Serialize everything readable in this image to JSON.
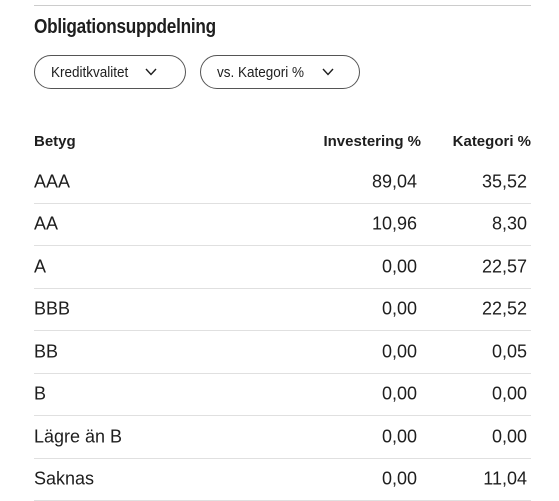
{
  "section": {
    "title": "Obligationsuppdelning"
  },
  "filters": {
    "primary_label": "Kreditkvalitet",
    "compare_label": "vs. Kategori %"
  },
  "table": {
    "headers": {
      "grade": "Betyg",
      "investment": "Investering  %",
      "category": "Kategori  %"
    },
    "rows": [
      {
        "grade": "AAA",
        "investment": "89,04",
        "category": "35,52"
      },
      {
        "grade": "AA",
        "investment": "10,96",
        "category": "8,30"
      },
      {
        "grade": "A",
        "investment": "0,00",
        "category": "22,57"
      },
      {
        "grade": "BBB",
        "investment": "0,00",
        "category": "22,52"
      },
      {
        "grade": "BB",
        "investment": "0,00",
        "category": "0,05"
      },
      {
        "grade": "B",
        "investment": "0,00",
        "category": "0,00"
      },
      {
        "grade": "Lägre än B",
        "investment": "0,00",
        "category": "0,00"
      },
      {
        "grade": "Saknas",
        "investment": "0,00",
        "category": "11,04"
      }
    ]
  },
  "icons": {
    "dropdown": "chevron-down-icon"
  },
  "colors": {
    "text": "#1e1e1e",
    "border": "#555555",
    "divider": "#e0e0e0"
  }
}
